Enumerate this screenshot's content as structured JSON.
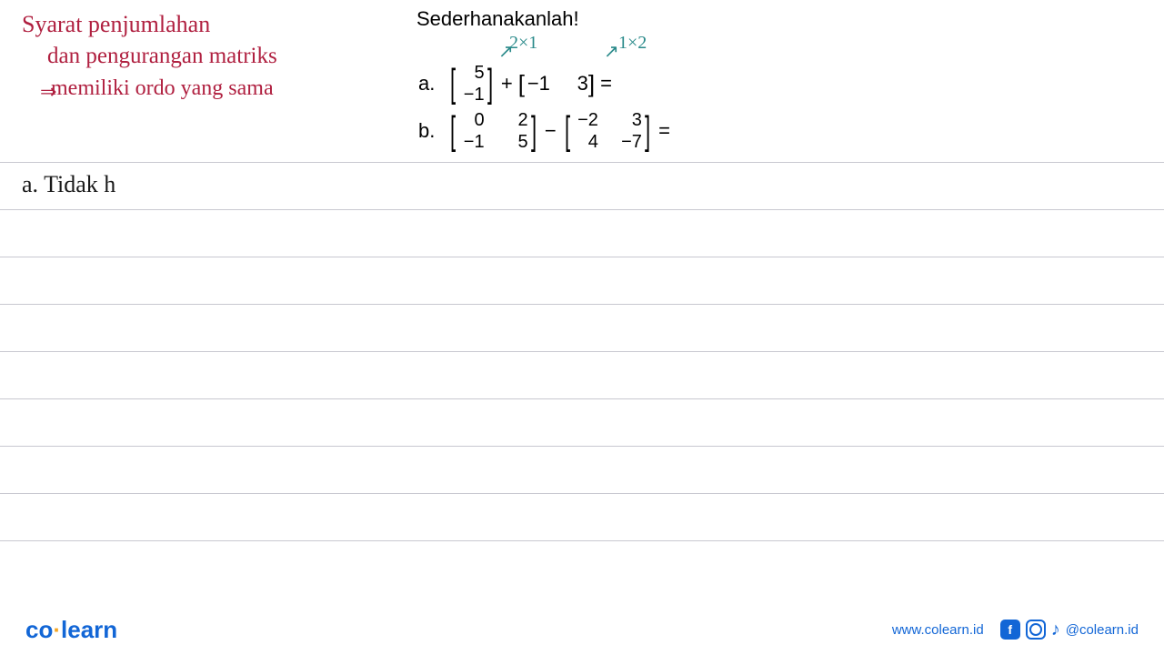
{
  "title": "Sederhanakanlah!",
  "handwriting": {
    "red_line1": "Syarat penjumlahan",
    "red_line2": "dan pengurangan matriks",
    "red_line3": "memiliki ordo yang sama",
    "red_arrow": "⇒",
    "teal_dim1": "2×1",
    "teal_arrow1": "↗",
    "teal_dim2": "1×2",
    "teal_arrow2": "↗",
    "answer_a": "a. Tidak h"
  },
  "problems": {
    "a": {
      "label": "a.",
      "m1": {
        "r1c1": "5",
        "r2c1": "−1"
      },
      "op": "+",
      "m2": {
        "r1c1": "−1",
        "r1c2": "3"
      },
      "eq": "="
    },
    "b": {
      "label": "b.",
      "m1": {
        "r1c1": "0",
        "r1c2": "2",
        "r2c1": "−1",
        "r2c2": "5"
      },
      "op": "−",
      "m2": {
        "r1c1": "−2",
        "r1c2": "3",
        "r2c1": "4",
        "r2c2": "−7"
      },
      "eq": "="
    }
  },
  "ruled_lines": [
    178,
    230,
    282,
    334,
    386,
    438,
    490,
    542,
    594
  ],
  "footer": {
    "logo_co": "co",
    "logo_learn": "learn",
    "url": "www.colearn.id",
    "handle": "@colearn.id"
  },
  "colors": {
    "red_hw": "#b02040",
    "teal_hw": "#2a8a8a",
    "black_hw": "#1a1a1a",
    "rule": "#c8c8d0",
    "brand": "#1266d6",
    "dot": "#f5a623"
  }
}
